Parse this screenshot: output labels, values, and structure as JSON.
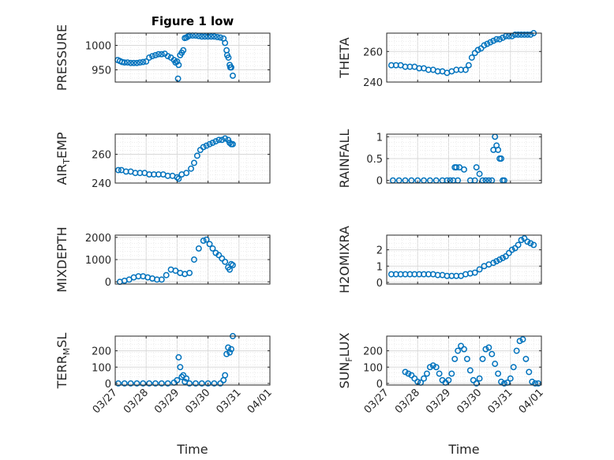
{
  "colors": {
    "marker": "#0072BD",
    "axis": "#262626",
    "grid": "#e1e1e1"
  },
  "chart_data": [
    {
      "type": "scatter",
      "title": "Figure 1 low",
      "ylabel": "PRESSURE",
      "xlabel": "",
      "xlim": [
        0,
        5
      ],
      "ylim": [
        925,
        1025
      ],
      "xticks": [
        0,
        1,
        2,
        3,
        4,
        5
      ],
      "xticklabels": [],
      "yticks": [
        950,
        1000
      ],
      "yticklabels": [
        "950",
        "1000"
      ],
      "grid": true,
      "x": [
        0.08,
        0.15,
        0.22,
        0.3,
        0.4,
        0.5,
        0.6,
        0.7,
        0.8,
        0.9,
        1.0,
        1.1,
        1.2,
        1.3,
        1.4,
        1.5,
        1.6,
        1.7,
        1.8,
        1.9,
        1.95,
        2.0,
        2.03,
        2.05,
        2.1,
        2.15,
        2.2,
        2.25,
        2.3,
        2.35,
        2.4,
        2.5,
        2.6,
        2.7,
        2.8,
        2.9,
        3.0,
        3.1,
        3.2,
        3.3,
        3.4,
        3.5,
        3.55,
        3.6,
        3.62,
        3.66,
        3.7,
        3.72,
        3.75,
        3.8
      ],
      "y": [
        970,
        968,
        966,
        965,
        965,
        964,
        964,
        964,
        965,
        966,
        967,
        975,
        978,
        980,
        982,
        982,
        983,
        978,
        975,
        970,
        965,
        967,
        932,
        960,
        980,
        985,
        990,
        1015,
        1016,
        1018,
        1020,
        1020,
        1020,
        1019,
        1018,
        1018,
        1018,
        1018,
        1018,
        1017,
        1016,
        1014,
        1005,
        990,
        980,
        975,
        960,
        955,
        955,
        938
      ]
    },
    {
      "type": "scatter",
      "title": "",
      "ylabel": "THETA",
      "xlabel": "",
      "xlim": [
        0,
        5
      ],
      "ylim": [
        240,
        272
      ],
      "xticks": [
        0,
        1,
        2,
        3,
        4,
        5
      ],
      "xticklabels": [],
      "yticks": [
        240,
        260
      ],
      "yticklabels": [
        "240",
        "260"
      ],
      "grid": true,
      "x": [
        0.15,
        0.3,
        0.45,
        0.6,
        0.75,
        0.9,
        1.05,
        1.2,
        1.35,
        1.5,
        1.65,
        1.8,
        1.95,
        2.1,
        2.25,
        2.4,
        2.55,
        2.65,
        2.75,
        2.85,
        2.95,
        3.05,
        3.15,
        3.25,
        3.35,
        3.45,
        3.55,
        3.65,
        3.75,
        3.85,
        3.95,
        4.05,
        4.15,
        4.25,
        4.35,
        4.45,
        4.55,
        4.65,
        4.75
      ],
      "y": [
        251,
        251,
        251,
        250,
        250,
        250,
        249,
        249,
        248,
        248,
        247,
        247,
        246,
        247,
        248,
        248,
        248,
        251,
        256,
        259,
        261,
        262,
        264,
        265,
        266,
        267,
        268,
        268,
        269,
        270,
        270,
        270,
        271,
        271,
        271,
        271,
        271,
        271,
        272
      ]
    },
    {
      "type": "scatter",
      "title": "",
      "ylabel": "AIR_TEMP",
      "xlabel": "",
      "xlim": [
        0,
        5
      ],
      "ylim": [
        240,
        274
      ],
      "xticks": [
        0,
        1,
        2,
        3,
        4,
        5
      ],
      "xticklabels": [],
      "yticks": [
        240,
        260
      ],
      "yticklabels": [
        "240",
        "260"
      ],
      "grid": true,
      "x": [
        0.1,
        0.2,
        0.35,
        0.5,
        0.65,
        0.8,
        0.95,
        1.1,
        1.25,
        1.4,
        1.55,
        1.7,
        1.85,
        2.0,
        2.05,
        2.15,
        2.3,
        2.45,
        2.55,
        2.65,
        2.75,
        2.85,
        2.95,
        3.05,
        3.15,
        3.25,
        3.35,
        3.45,
        3.55,
        3.65,
        3.7,
        3.75,
        3.8
      ],
      "y": [
        249,
        249,
        248,
        248,
        247,
        247,
        247,
        246,
        246,
        246,
        246,
        245,
        245,
        244,
        243,
        246,
        247,
        250,
        254,
        259,
        263,
        265,
        266,
        267,
        268,
        269,
        270,
        270,
        271,
        270,
        268,
        267,
        267
      ]
    },
    {
      "type": "scatter",
      "title": "",
      "ylabel": "RAINFALL",
      "xlabel": "",
      "xlim": [
        0,
        5
      ],
      "ylim": [
        -0.06,
        1.06
      ],
      "xticks": [
        0,
        1,
        2,
        3,
        4,
        5
      ],
      "xticklabels": [],
      "yticks": [
        0,
        0.5,
        1
      ],
      "yticklabels": [
        "0",
        "0.5",
        "1"
      ],
      "grid": true,
      "x": [
        0.2,
        0.4,
        0.6,
        0.8,
        1.0,
        1.2,
        1.4,
        1.6,
        1.8,
        1.95,
        2.05,
        2.15,
        2.2,
        2.25,
        2.3,
        2.35,
        2.5,
        2.7,
        2.85,
        2.9,
        3.0,
        3.1,
        3.2,
        3.3,
        3.4,
        3.45,
        3.5,
        3.55,
        3.6,
        3.65,
        3.7,
        3.75,
        3.8
      ],
      "y": [
        0,
        0,
        0,
        0,
        0,
        0,
        0,
        0,
        0,
        0,
        0,
        0,
        0.3,
        0.3,
        0,
        0.3,
        0.25,
        0,
        0,
        0.3,
        0.15,
        0,
        0,
        0,
        0,
        0.7,
        1.0,
        0.8,
        0.7,
        0.5,
        0.5,
        0,
        0
      ]
    },
    {
      "type": "scatter",
      "title": "",
      "ylabel": "MIXDEPTH",
      "xlabel": "",
      "xlim": [
        0,
        5
      ],
      "ylim": [
        -100,
        2100
      ],
      "xticks": [
        0,
        1,
        2,
        3,
        4,
        5
      ],
      "xticklabels": [],
      "yticks": [
        0,
        1000,
        2000
      ],
      "yticklabels": [
        "0",
        "1000",
        "2000"
      ],
      "grid": true,
      "x": [
        0.15,
        0.3,
        0.45,
        0.6,
        0.75,
        0.9,
        1.05,
        1.2,
        1.35,
        1.5,
        1.65,
        1.8,
        1.95,
        2.1,
        2.25,
        2.4,
        2.55,
        2.7,
        2.85,
        2.95,
        3.05,
        3.15,
        3.25,
        3.35,
        3.45,
        3.55,
        3.65,
        3.7,
        3.75,
        3.8
      ],
      "y": [
        0,
        50,
        100,
        200,
        250,
        250,
        200,
        150,
        100,
        100,
        300,
        550,
        500,
        400,
        350,
        400,
        1000,
        1500,
        1850,
        1900,
        1700,
        1500,
        1300,
        1200,
        1050,
        900,
        650,
        550,
        800,
        750
      ]
    },
    {
      "type": "scatter",
      "title": "",
      "ylabel": "H2OMIXRA",
      "xlabel": "",
      "xlim": [
        0,
        5
      ],
      "ylim": [
        -0.1,
        2.9
      ],
      "xticks": [
        0,
        1,
        2,
        3,
        4,
        5
      ],
      "xticklabels": [],
      "yticks": [
        0,
        1,
        2
      ],
      "yticklabels": [
        "0",
        "1",
        "2"
      ],
      "grid": true,
      "x": [
        0.15,
        0.3,
        0.45,
        0.6,
        0.75,
        0.9,
        1.05,
        1.2,
        1.35,
        1.5,
        1.65,
        1.8,
        1.95,
        2.1,
        2.25,
        2.4,
        2.55,
        2.7,
        2.85,
        3.0,
        3.15,
        3.3,
        3.45,
        3.55,
        3.65,
        3.75,
        3.85,
        3.95,
        4.05,
        4.15,
        4.25,
        4.35,
        4.45,
        4.55,
        4.65,
        4.75
      ],
      "y": [
        0.5,
        0.5,
        0.5,
        0.5,
        0.5,
        0.5,
        0.5,
        0.5,
        0.5,
        0.5,
        0.45,
        0.45,
        0.4,
        0.4,
        0.4,
        0.4,
        0.5,
        0.55,
        0.6,
        0.8,
        1.0,
        1.1,
        1.2,
        1.3,
        1.4,
        1.5,
        1.6,
        1.8,
        2.0,
        2.1,
        2.3,
        2.6,
        2.7,
        2.5,
        2.4,
        2.3
      ]
    },
    {
      "type": "scatter",
      "title": "",
      "ylabel": "TERR_MSL",
      "xlabel": "Time",
      "xlim": [
        0,
        5
      ],
      "ylim": [
        -10,
        290
      ],
      "xticks": [
        0,
        1,
        2,
        3,
        4,
        5
      ],
      "xticklabels": [
        "03/27",
        "03/28",
        "03/29",
        "03/30",
        "03/31",
        "04/01"
      ],
      "yticks": [
        0,
        100,
        200
      ],
      "yticklabels": [
        "0",
        "100",
        "200"
      ],
      "grid": true,
      "x": [
        0.1,
        0.3,
        0.5,
        0.7,
        0.9,
        1.1,
        1.3,
        1.5,
        1.7,
        1.9,
        2.0,
        2.05,
        2.1,
        2.15,
        2.2,
        2.25,
        2.3,
        2.4,
        2.6,
        2.8,
        3.0,
        3.2,
        3.4,
        3.5,
        3.55,
        3.6,
        3.65,
        3.7,
        3.75,
        3.8
      ],
      "y": [
        0,
        0,
        0,
        0,
        0,
        0,
        0,
        0,
        0,
        5,
        20,
        160,
        100,
        40,
        50,
        10,
        30,
        0,
        0,
        0,
        0,
        0,
        0,
        20,
        50,
        180,
        220,
        190,
        210,
        290
      ]
    },
    {
      "type": "scatter",
      "title": "",
      "ylabel": "SUN_FLUX",
      "xlabel": "Time",
      "xlim": [
        0,
        5
      ],
      "ylim": [
        -10,
        290
      ],
      "xticks": [
        0,
        1,
        2,
        3,
        4,
        5
      ],
      "xticklabels": [
        "03/27",
        "03/28",
        "03/29",
        "03/30",
        "03/31",
        "04/01"
      ],
      "yticks": [
        0,
        100,
        200
      ],
      "yticklabels": [
        "0",
        "100",
        "200"
      ],
      "grid": true,
      "x": [
        0.6,
        0.7,
        0.8,
        0.9,
        1.0,
        1.1,
        1.2,
        1.3,
        1.4,
        1.5,
        1.6,
        1.7,
        1.8,
        1.9,
        2.0,
        2.1,
        2.2,
        2.3,
        2.4,
        2.5,
        2.6,
        2.7,
        2.8,
        2.9,
        3.0,
        3.1,
        3.2,
        3.3,
        3.4,
        3.5,
        3.6,
        3.7,
        3.8,
        3.9,
        4.0,
        4.1,
        4.2,
        4.3,
        4.4,
        4.5,
        4.6,
        4.7,
        4.8,
        4.9
      ],
      "y": [
        70,
        60,
        50,
        30,
        10,
        5,
        30,
        60,
        100,
        110,
        100,
        60,
        20,
        5,
        20,
        60,
        150,
        200,
        230,
        210,
        150,
        80,
        20,
        0,
        30,
        150,
        210,
        220,
        180,
        120,
        60,
        10,
        0,
        5,
        30,
        100,
        200,
        260,
        270,
        150,
        70,
        10,
        0,
        0
      ]
    }
  ]
}
